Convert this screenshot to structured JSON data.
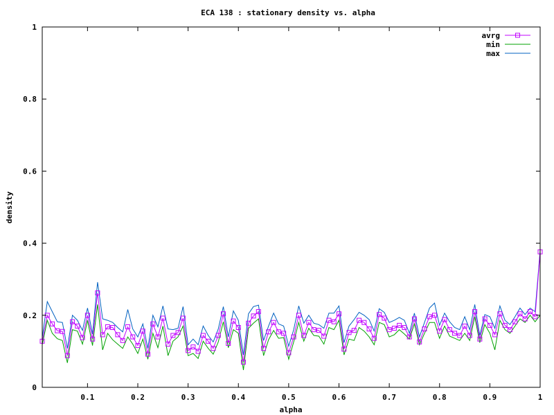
{
  "chart_data": {
    "type": "line",
    "title": "ECA 138 : stationary density vs. alpha",
    "xlabel": "alpha",
    "ylabel": "density",
    "xlim": [
      0.01,
      1.0
    ],
    "ylim": [
      0,
      1
    ],
    "x_ticks": [
      {
        "value": 0.1,
        "label": "0.1"
      },
      {
        "value": 0.2,
        "label": "0.2"
      },
      {
        "value": 0.3,
        "label": "0.3"
      },
      {
        "value": 0.4,
        "label": "0.4"
      },
      {
        "value": 0.5,
        "label": "0.5"
      },
      {
        "value": 0.6,
        "label": "0.6"
      },
      {
        "value": 0.7,
        "label": "0.7"
      },
      {
        "value": 0.8,
        "label": "0.8"
      },
      {
        "value": 0.9,
        "label": "0.9"
      },
      {
        "value": 1.0,
        "label": "1"
      }
    ],
    "y_ticks": [
      {
        "value": 0,
        "label": "0"
      },
      {
        "value": 0.2,
        "label": "0.2"
      },
      {
        "value": 0.4,
        "label": "0.4"
      },
      {
        "value": 0.6,
        "label": "0.6"
      },
      {
        "value": 0.8,
        "label": "0.8"
      },
      {
        "value": 1.0,
        "label": "1"
      }
    ],
    "grid": false,
    "legend_position": "top-right",
    "x": [
      0.01,
      0.02,
      0.03,
      0.04,
      0.05,
      0.06,
      0.07,
      0.08,
      0.09,
      0.1,
      0.11,
      0.12,
      0.13,
      0.14,
      0.15,
      0.16,
      0.17,
      0.18,
      0.19,
      0.2,
      0.21,
      0.22,
      0.23,
      0.24,
      0.25,
      0.26,
      0.27,
      0.28,
      0.29,
      0.3,
      0.31,
      0.32,
      0.33,
      0.34,
      0.35,
      0.36,
      0.37,
      0.38,
      0.39,
      0.4,
      0.41,
      0.42,
      0.43,
      0.44,
      0.45,
      0.46,
      0.47,
      0.48,
      0.49,
      0.5,
      0.51,
      0.52,
      0.53,
      0.54,
      0.55,
      0.56,
      0.57,
      0.58,
      0.59,
      0.6,
      0.61,
      0.62,
      0.63,
      0.64,
      0.65,
      0.66,
      0.67,
      0.68,
      0.69,
      0.7,
      0.71,
      0.72,
      0.73,
      0.74,
      0.75,
      0.76,
      0.77,
      0.78,
      0.79,
      0.8,
      0.81,
      0.82,
      0.83,
      0.84,
      0.85,
      0.86,
      0.87,
      0.88,
      0.89,
      0.9,
      0.91,
      0.92,
      0.93,
      0.94,
      0.95,
      0.96,
      0.97,
      0.98,
      0.99,
      1.0
    ],
    "series": [
      {
        "name": "avrg",
        "color": "#c000ff",
        "marker": "square",
        "values": [
          0.128,
          0.2,
          0.176,
          0.157,
          0.155,
          0.088,
          0.182,
          0.17,
          0.138,
          0.2,
          0.134,
          0.262,
          0.146,
          0.168,
          0.166,
          0.146,
          0.13,
          0.168,
          0.14,
          0.116,
          0.156,
          0.092,
          0.176,
          0.14,
          0.192,
          0.12,
          0.144,
          0.152,
          0.192,
          0.102,
          0.112,
          0.1,
          0.144,
          0.128,
          0.108,
          0.144,
          0.204,
          0.122,
          0.184,
          0.166,
          0.07,
          0.178,
          0.198,
          0.21,
          0.108,
          0.154,
          0.18,
          0.154,
          0.15,
          0.096,
          0.14,
          0.2,
          0.144,
          0.18,
          0.16,
          0.158,
          0.142,
          0.186,
          0.182,
          0.204,
          0.106,
          0.152,
          0.158,
          0.186,
          0.18,
          0.162,
          0.136,
          0.202,
          0.192,
          0.16,
          0.164,
          0.172,
          0.166,
          0.14,
          0.19,
          0.126,
          0.162,
          0.196,
          0.2,
          0.156,
          0.188,
          0.16,
          0.15,
          0.144,
          0.17,
          0.144,
          0.21,
          0.134,
          0.19,
          0.172,
          0.146,
          0.204,
          0.172,
          0.16,
          0.182,
          0.204,
          0.19,
          0.21,
          0.196,
          0.376
        ]
      },
      {
        "name": "min",
        "color": "#00a000",
        "marker": "none",
        "values": [
          0.118,
          0.186,
          0.15,
          0.135,
          0.13,
          0.068,
          0.16,
          0.156,
          0.12,
          0.186,
          0.116,
          0.23,
          0.104,
          0.15,
          0.132,
          0.12,
          0.108,
          0.14,
          0.12,
          0.094,
          0.134,
          0.078,
          0.15,
          0.11,
          0.17,
          0.088,
          0.128,
          0.14,
          0.17,
          0.088,
          0.094,
          0.08,
          0.128,
          0.108,
          0.092,
          0.126,
          0.182,
          0.11,
          0.16,
          0.15,
          0.048,
          0.164,
          0.178,
          0.19,
          0.088,
          0.132,
          0.158,
          0.136,
          0.138,
          0.078,
          0.126,
          0.18,
          0.128,
          0.164,
          0.144,
          0.142,
          0.12,
          0.166,
          0.16,
          0.186,
          0.09,
          0.134,
          0.13,
          0.166,
          0.156,
          0.14,
          0.118,
          0.18,
          0.174,
          0.14,
          0.146,
          0.16,
          0.148,
          0.134,
          0.176,
          0.118,
          0.15,
          0.18,
          0.18,
          0.136,
          0.17,
          0.142,
          0.136,
          0.13,
          0.15,
          0.13,
          0.196,
          0.124,
          0.174,
          0.15,
          0.104,
          0.186,
          0.16,
          0.15,
          0.17,
          0.19,
          0.18,
          0.2,
          0.182,
          0.2
        ]
      },
      {
        "name": "max",
        "color": "#0060c0",
        "marker": "none",
        "values": [
          0.138,
          0.238,
          0.21,
          0.182,
          0.18,
          0.108,
          0.2,
          0.186,
          0.158,
          0.22,
          0.148,
          0.292,
          0.19,
          0.186,
          0.18,
          0.166,
          0.154,
          0.216,
          0.162,
          0.14,
          0.176,
          0.108,
          0.2,
          0.168,
          0.226,
          0.162,
          0.16,
          0.164,
          0.224,
          0.118,
          0.134,
          0.118,
          0.17,
          0.144,
          0.126,
          0.162,
          0.224,
          0.14,
          0.212,
          0.186,
          0.09,
          0.204,
          0.224,
          0.228,
          0.13,
          0.17,
          0.206,
          0.176,
          0.17,
          0.114,
          0.16,
          0.226,
          0.178,
          0.2,
          0.178,
          0.174,
          0.164,
          0.206,
          0.206,
          0.226,
          0.124,
          0.17,
          0.188,
          0.208,
          0.2,
          0.188,
          0.156,
          0.218,
          0.208,
          0.18,
          0.186,
          0.194,
          0.186,
          0.15,
          0.206,
          0.14,
          0.18,
          0.22,
          0.234,
          0.172,
          0.206,
          0.182,
          0.166,
          0.16,
          0.196,
          0.16,
          0.23,
          0.144,
          0.202,
          0.196,
          0.164,
          0.226,
          0.186,
          0.174,
          0.196,
          0.22,
          0.202,
          0.22,
          0.21,
          0.38
        ]
      }
    ]
  }
}
